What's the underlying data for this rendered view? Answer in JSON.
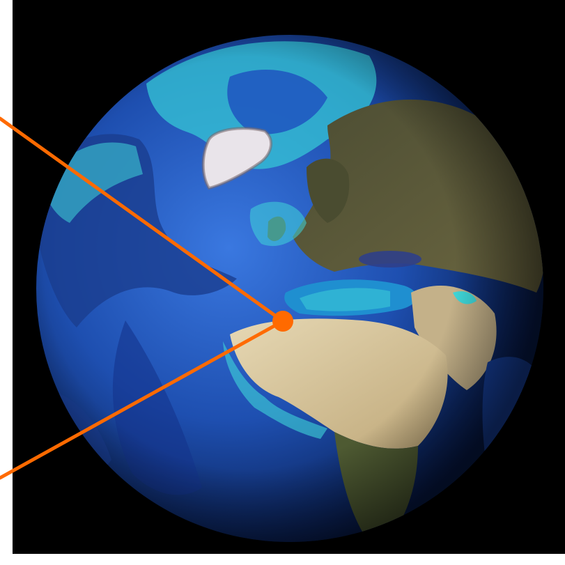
{
  "image": {
    "subject": "globe",
    "colors": {
      "background": "#ffffff",
      "space": "#000000",
      "ocean_deep": "#0b2a7a",
      "ocean_mid": "#2458c4",
      "shelf": "#3fd6d8",
      "land": "#5a5a3a",
      "desert": "#d9c9a0",
      "ice": "#f0f0f0",
      "pointer": "#ff6a00"
    }
  }
}
